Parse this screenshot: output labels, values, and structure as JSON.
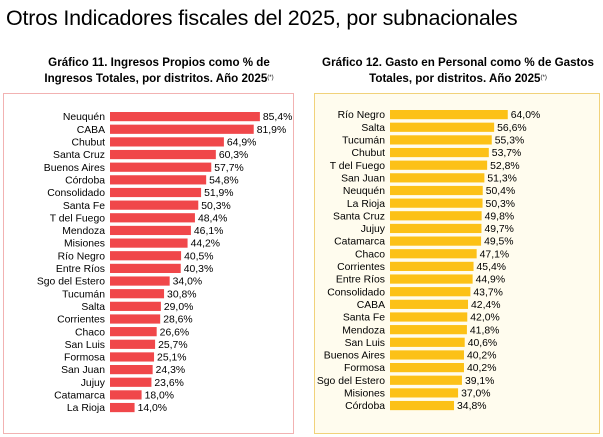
{
  "page": {
    "title": "Otros Indicadores fiscales del 2025, por subnacionales"
  },
  "colors": {
    "left_bar": "#f0474a",
    "right_bar": "#fcc117"
  },
  "chart_data": [
    {
      "type": "bar",
      "orientation": "horizontal",
      "title": "Gráfico 11. Ingresos Propios como % de Ingresos Totales, por distritos. Año 2025",
      "title_note": "(*)",
      "categories": [
        "Neuquén",
        "CABA",
        "Chubut",
        "Santa Cruz",
        "Buenos Aires",
        "Córdoba",
        "Consolidado",
        "Santa Fe",
        "T del Fuego",
        "Mendoza",
        "Misiones",
        "Río Negro",
        "Entre Ríos",
        "Sgo del Estero",
        "Tucumán",
        "Salta",
        "Corrientes",
        "Chaco",
        "San Luis",
        "Formosa",
        "San Juan",
        "Jujuy",
        "Catamarca",
        "La Rioja"
      ],
      "values": [
        85.4,
        81.9,
        64.9,
        60.3,
        57.7,
        54.8,
        51.9,
        50.3,
        48.4,
        46.1,
        44.2,
        40.5,
        40.3,
        34.0,
        30.8,
        29.0,
        28.6,
        26.6,
        25.7,
        25.1,
        24.3,
        23.6,
        18.0,
        14.0
      ],
      "value_labels": [
        "85,4%",
        "81,9%",
        "64,9%",
        "60,3%",
        "57,7%",
        "54,8%",
        "51,9%",
        "50,3%",
        "48,4%",
        "46,1%",
        "44,2%",
        "40,5%",
        "40,3%",
        "34,0%",
        "30,8%",
        "29,0%",
        "28,6%",
        "26,6%",
        "25,7%",
        "25,1%",
        "24,3%",
        "23,6%",
        "18,0%",
        "14,0%"
      ],
      "xlim": [
        0,
        100
      ],
      "grid": false
    },
    {
      "type": "bar",
      "orientation": "horizontal",
      "title": "Gráfico 12. Gasto en Personal como % de Gastos Totales, por distritos. Año 2025",
      "title_note": "(*)",
      "categories": [
        "Río Negro",
        "Salta",
        "Tucumán",
        "Chubut",
        "T del Fuego",
        "San Juan",
        "Neuquén",
        "La Rioja",
        "Santa Cruz",
        "Jujuy",
        "Catamarca",
        "Chaco",
        "Corrientes",
        "Entre Ríos",
        "Consolidado",
        "CABA",
        "Santa Fe",
        "Mendoza",
        "San Luis",
        "Buenos Aires",
        "Formosa",
        "Sgo del Estero",
        "Misiones",
        "Córdoba"
      ],
      "values": [
        64.0,
        56.6,
        55.3,
        53.7,
        52.8,
        51.3,
        50.4,
        50.3,
        49.8,
        49.7,
        49.5,
        47.1,
        45.4,
        44.9,
        43.7,
        42.4,
        42.0,
        41.8,
        40.6,
        40.2,
        40.2,
        39.1,
        37.0,
        34.8
      ],
      "value_labels": [
        "64,0%",
        "56,6%",
        "55,3%",
        "53,7%",
        "52,8%",
        "51,3%",
        "50,4%",
        "50,3%",
        "49,8%",
        "49,7%",
        "49,5%",
        "47,1%",
        "45,4%",
        "44,9%",
        "43,7%",
        "42,4%",
        "42,0%",
        "41,8%",
        "40,6%",
        "40,2%",
        "40,2%",
        "39,1%",
        "37,0%",
        "34,8%"
      ],
      "xlim": [
        0,
        100
      ],
      "grid": false
    }
  ]
}
